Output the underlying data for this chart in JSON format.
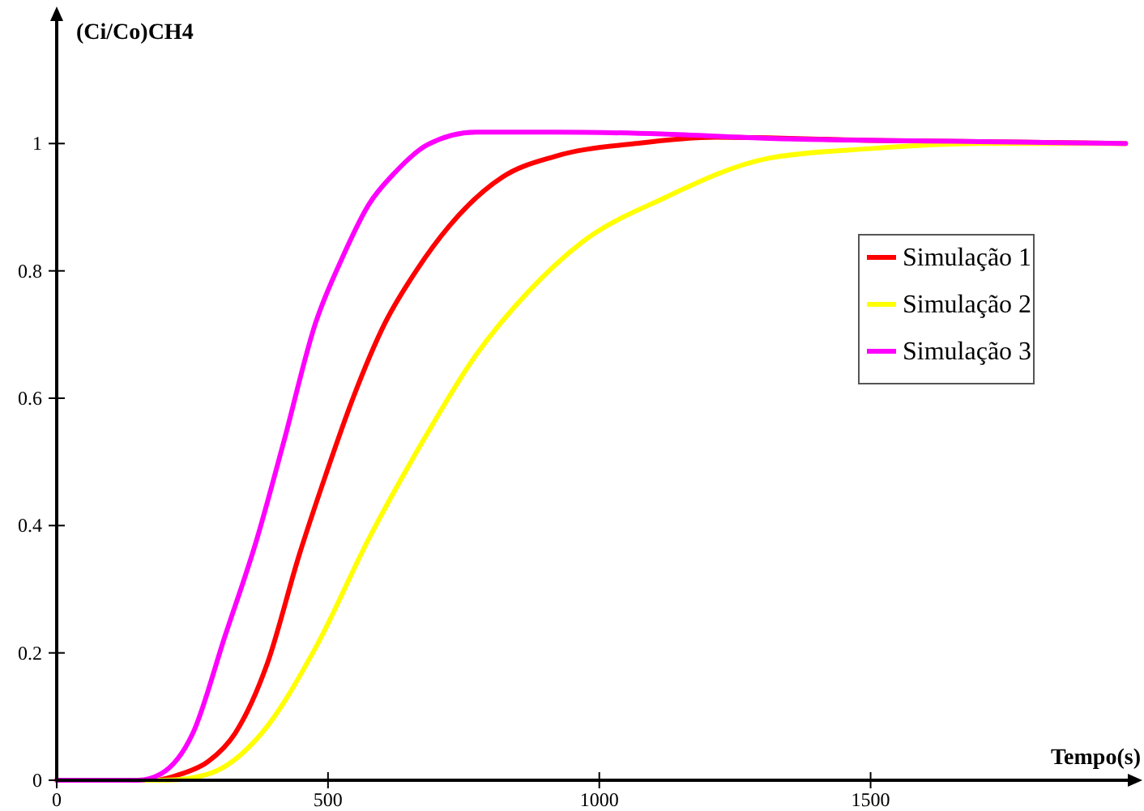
{
  "chart_data": {
    "type": "line",
    "xlabel": "Tempo(s)",
    "ylabel": "(Ci/Co)CH4",
    "xlim": [
      0,
      1980
    ],
    "ylim": [
      0,
      1.2
    ],
    "xticks": [
      0,
      500,
      1000,
      1500
    ],
    "yticks": [
      0,
      0.2,
      0.4,
      0.6,
      0.8,
      1
    ],
    "grid": false,
    "legend": "right",
    "marker": "none",
    "line_style": "solid",
    "series": [
      {
        "name": "Simulação 1",
        "color": "#ff0000",
        "x": [
          0,
          180,
          230,
          280,
          329,
          388,
          447,
          496,
          546,
          605,
          664,
          723,
          821,
          919,
          1067,
          1214,
          1500,
          1970
        ],
        "values": [
          0,
          0,
          0.01,
          0.03,
          0.074,
          0.183,
          0.354,
          0.48,
          0.6,
          0.718,
          0.802,
          0.87,
          0.947,
          0.98,
          1.0,
          1.01,
          1.005,
          1.0
        ]
      },
      {
        "name": "Simulação 2",
        "color": "#ffff00",
        "x": [
          0,
          200,
          280,
          378,
          477,
          575,
          673,
          772,
          870,
          968,
          1116,
          1313,
          1500,
          1700,
          1970
        ],
        "values": [
          0,
          0,
          0.01,
          0.074,
          0.208,
          0.379,
          0.53,
          0.667,
          0.768,
          0.845,
          0.913,
          0.977,
          0.992,
          1.0,
          1.0
        ]
      },
      {
        "name": "Simulação 3",
        "color": "#ff00ff",
        "x": [
          0,
          150,
          192,
          251,
          310,
          369,
          418,
          477,
          526,
          575,
          624,
          683,
          772,
          919,
          1115,
          1313,
          1700,
          1970
        ],
        "values": [
          0,
          0,
          0.01,
          0.074,
          0.226,
          0.379,
          0.53,
          0.718,
          0.82,
          0.904,
          0.955,
          0.998,
          1.018,
          1.018,
          1.015,
          1.008,
          1.003,
          1.0
        ]
      }
    ]
  }
}
